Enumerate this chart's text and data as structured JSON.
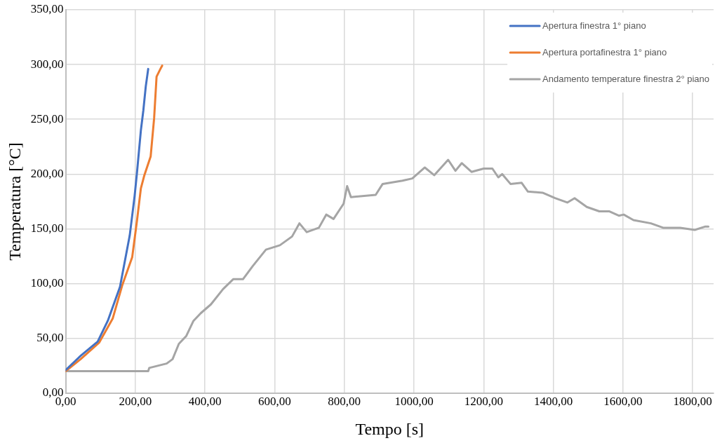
{
  "chart_data": {
    "type": "line",
    "xlabel": "Tempo [s]",
    "ylabel": "Temperatura [°C]",
    "xlim": [
      0,
      1860
    ],
    "ylim": [
      0,
      350
    ],
    "xticks": [
      {
        "value": 0,
        "label": "0,00"
      },
      {
        "value": 200,
        "label": "200,00"
      },
      {
        "value": 400,
        "label": "400,00"
      },
      {
        "value": 600,
        "label": "600,00"
      },
      {
        "value": 800,
        "label": "800,00"
      },
      {
        "value": 1000,
        "label": "1000,00"
      },
      {
        "value": 1200,
        "label": "1200,00"
      },
      {
        "value": 1400,
        "label": "1400,00"
      },
      {
        "value": 1600,
        "label": "1600,00"
      },
      {
        "value": 1800,
        "label": "1800,00"
      }
    ],
    "yticks": [
      {
        "value": 0,
        "label": "0,00"
      },
      {
        "value": 50,
        "label": "50,00"
      },
      {
        "value": 100,
        "label": "100,00"
      },
      {
        "value": 150,
        "label": "150,00"
      },
      {
        "value": 200,
        "label": "200,00"
      },
      {
        "value": 250,
        "label": "250,00"
      },
      {
        "value": 300,
        "label": "300,00"
      },
      {
        "value": 350,
        "label": "350,00"
      }
    ],
    "grid": true,
    "legend": "top right",
    "marker": "none",
    "line_style": "solid",
    "series": [
      {
        "name": "Apertura finestra 1° piano",
        "color": "#4472c4",
        "x": [
          0,
          43,
          92,
          121,
          156,
          184,
          198,
          205,
          216,
          223,
          230,
          237
        ],
        "values": [
          21,
          34,
          47,
          66,
          97,
          144,
          180,
          202,
          240,
          258,
          280,
          296
        ]
      },
      {
        "name": "Apertura portafinestra 1° piano",
        "color": "#ed7d31",
        "x": [
          0,
          43,
          96,
          135,
          163,
          191,
          205,
          216,
          226,
          244,
          254,
          261,
          272,
          277
        ],
        "values": [
          20,
          31,
          46,
          68,
          99,
          124,
          158,
          187,
          199,
          216,
          251,
          289,
          296,
          299
        ]
      },
      {
        "name": "Andamento temperature finestra 2° piano",
        "color": "#a5a5a5",
        "x": [
          0,
          237,
          240,
          290,
          307,
          325,
          346,
          367,
          388,
          417,
          452,
          481,
          509,
          537,
          575,
          615,
          650,
          671,
          692,
          727,
          748,
          769,
          798,
          808,
          819,
          890,
          910,
          967,
          995,
          1031,
          1058,
          1098,
          1119,
          1137,
          1165,
          1200,
          1225,
          1242,
          1253,
          1277,
          1309,
          1327,
          1369,
          1405,
          1440,
          1461,
          1496,
          1532,
          1560,
          1588,
          1602,
          1630,
          1680,
          1715,
          1764,
          1806,
          1835,
          1845
        ],
        "values": [
          20,
          20,
          23,
          27,
          31,
          45,
          52,
          66,
          73,
          81,
          95,
          104,
          104,
          116,
          131,
          135,
          143,
          155,
          147,
          151,
          163,
          159,
          173,
          189,
          179,
          181,
          191,
          194,
          196,
          206,
          199,
          213,
          203,
          210,
          202,
          205,
          205,
          197,
          200,
          191,
          192,
          184,
          183,
          178,
          174,
          178,
          170,
          166,
          166,
          162,
          163,
          158,
          155,
          151,
          151,
          149,
          152,
          152
        ]
      }
    ]
  }
}
